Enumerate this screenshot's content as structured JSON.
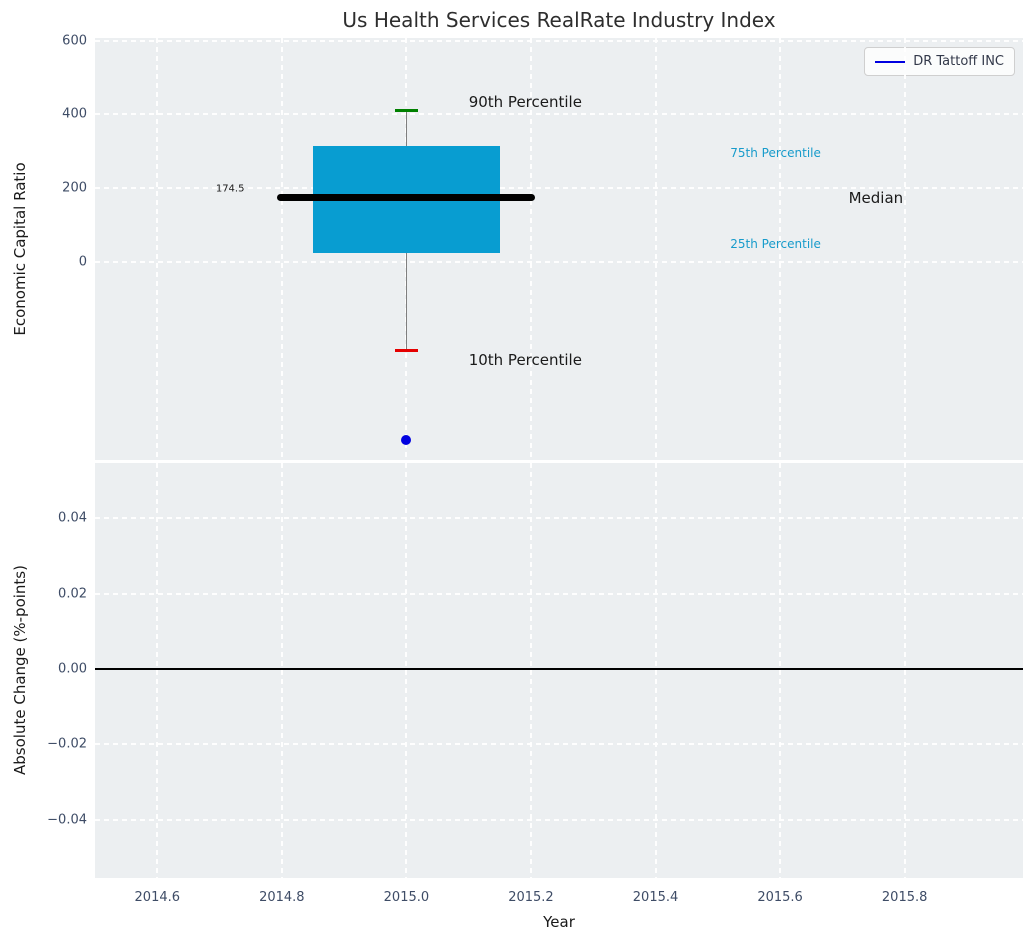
{
  "title": "Us Health Services RealRate Industry Index",
  "legend": {
    "label": "DR Tattoff INC",
    "line_color": "#0000e0"
  },
  "colors": {
    "axes_background": "#eceff1",
    "grid": "#ffffff",
    "tick_label": "#3e4c66",
    "box_fill": "#089dd1",
    "median_line": "#000000",
    "whisker": "#7f7f7f",
    "cap_top": "#008000",
    "cap_bottom": "#e50000",
    "company_point": "#0000e0",
    "percentile_text": "#179bcb",
    "zero_line": "#000000"
  },
  "chart_data": [
    {
      "type": "box",
      "title": "Us Health Services RealRate Industry Index",
      "ylabel": "Economic Capital Ratio",
      "legend_entry": "DR Tattoff INC",
      "x_center": 2015.0,
      "median": 174.5,
      "q1": 25,
      "q3": 315,
      "p90": 410,
      "p10": -240,
      "company_point": {
        "name": "DR Tattoff INC",
        "x": 2015.0,
        "y": -480
      },
      "median_label": "174.5",
      "xlim": [
        2014.5,
        2015.99
      ],
      "ylim": [
        -535,
        607
      ],
      "grid": "dashed-white",
      "legend_position": "upper-right",
      "yticks": {
        "values": [
          600,
          400,
          200,
          0
        ],
        "labels": [
          "600",
          "400",
          "200",
          "0"
        ]
      },
      "annotations": [
        {
          "text": "90th Percentile",
          "x": 2015.1,
          "y": 435,
          "color": "#1a1a1a",
          "size": 15,
          "align": "left"
        },
        {
          "text": "10th Percentile",
          "x": 2015.1,
          "y": -265,
          "color": "#1a1a1a",
          "size": 15,
          "align": "left"
        },
        {
          "text": "75th Percentile",
          "x": 2015.52,
          "y": 295,
          "color": "#179bcb",
          "size": 12,
          "align": "left"
        },
        {
          "text": "25th Percentile",
          "x": 2015.52,
          "y": 50,
          "color": "#179bcb",
          "size": 12,
          "align": "left"
        },
        {
          "text": "Median",
          "x": 2015.71,
          "y": 175,
          "color": "#1a1a1a",
          "size": 15,
          "align": "left"
        },
        {
          "text": "174.5",
          "x": 2014.74,
          "y": 198,
          "color": "#1a1a1a",
          "size": 10,
          "align": "right"
        }
      ]
    },
    {
      "type": "line",
      "ylabel": "Absolute Change (%-points)",
      "xlabel": "Year",
      "series": [
        {
          "name": "DR Tattoff INC",
          "x": [],
          "y": []
        }
      ],
      "zero_line": 0.0,
      "xlim": [
        2014.5,
        2015.99
      ],
      "ylim": [
        -0.0554,
        0.0546
      ],
      "grid": "dashed-white",
      "xticks": {
        "values": [
          2014.6,
          2014.8,
          2015.0,
          2015.2,
          2015.4,
          2015.6,
          2015.8
        ],
        "labels": [
          "2014.6",
          "2014.8",
          "2015.0",
          "2015.2",
          "2015.4",
          "2015.6",
          "2015.8"
        ]
      },
      "yticks": {
        "values": [
          0.04,
          0.02,
          0.0,
          -0.02,
          -0.04
        ],
        "labels": [
          "0.04",
          "0.02",
          "0.00",
          "−0.02",
          "−0.04"
        ]
      }
    }
  ]
}
